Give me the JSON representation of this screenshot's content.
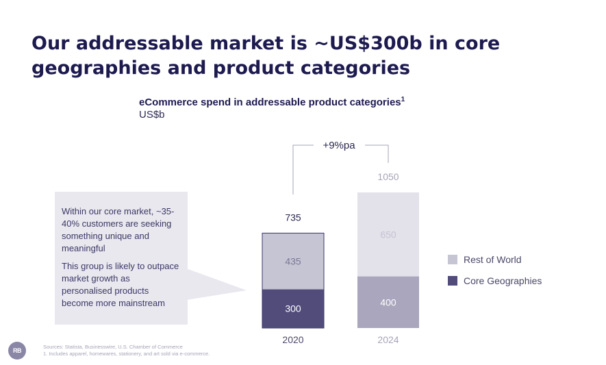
{
  "slide": {
    "title": "Our addressable market is ~US$300b in core geographies and product categories",
    "callout": {
      "paragraph1": "Within our core market, ~35-40% customers are seeking something unique and meaningful",
      "paragraph2": "This group is likely to outpace market growth as personalised products become more mainstream"
    },
    "footer": {
      "sources": "Sources: Statista, Businesswire, U.S. Chamber of Commerce",
      "note": "1. Includes apparel, homewares, stationery, and art sold via e-commerce."
    },
    "logo_text": "RB"
  },
  "chart_data": {
    "type": "bar",
    "stacked": true,
    "title": "eCommerce spend in addressable product categories",
    "title_superscript": "1",
    "unit": "US$b",
    "categories": [
      "2020",
      "2024"
    ],
    "totals": [
      735,
      1050
    ],
    "total_labels": [
      "735",
      "1050"
    ],
    "series": [
      {
        "name": "Core Geographies",
        "values": [
          300,
          400
        ],
        "labels": [
          "300",
          "400"
        ],
        "colors": [
          "#514c7a",
          "#a9a6bd"
        ]
      },
      {
        "name": "Rest of World",
        "values": [
          435,
          650
        ],
        "labels": [
          "435",
          "650"
        ],
        "colors": [
          "#c6c5d3",
          "#e3e2ea"
        ]
      }
    ],
    "legend": [
      {
        "label": "Rest of World",
        "color": "#c6c5d3"
      },
      {
        "label": "Core Geographies",
        "color": "#514c7a"
      }
    ],
    "legend_position": "right",
    "growth_annotation": "+9%pa",
    "ylim": [
      0,
      1050
    ],
    "grid": false
  }
}
